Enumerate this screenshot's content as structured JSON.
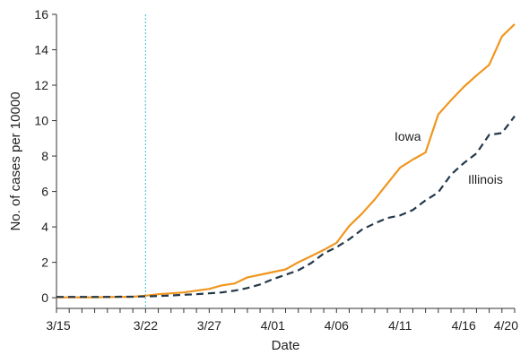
{
  "chart_data": {
    "type": "line",
    "xlabel": "Date",
    "ylabel": "No. of cases per 10000",
    "x_ticks": [
      "3/15",
      "3/22",
      "3/27",
      "4/01",
      "4/06",
      "4/11",
      "4/16",
      "4/20"
    ],
    "x_tick_days": [
      0,
      7,
      12,
      17,
      22,
      27,
      32,
      36
    ],
    "y_ticks": [
      0,
      2,
      4,
      6,
      8,
      10,
      12,
      14,
      16
    ],
    "ylim": [
      -0.6,
      16
    ],
    "xlim": [
      "3/15",
      "4/20"
    ],
    "grid": false,
    "reference_line": {
      "date": "3/22",
      "style": "dotted",
      "color": "#5bc8d8"
    },
    "x": [
      "3/15",
      "3/16",
      "3/17",
      "3/18",
      "3/19",
      "3/20",
      "3/21",
      "3/22",
      "3/23",
      "3/24",
      "3/25",
      "3/26",
      "3/27",
      "3/28",
      "3/29",
      "3/30",
      "3/31",
      "4/01",
      "4/02",
      "4/03",
      "4/04",
      "4/05",
      "4/06",
      "4/07",
      "4/08",
      "4/09",
      "4/10",
      "4/11",
      "4/12",
      "4/13",
      "4/14",
      "4/15",
      "4/16",
      "4/17",
      "4/18",
      "4/19",
      "4/20"
    ],
    "series": [
      {
        "name": "Iowa",
        "color": "#f0961e",
        "dash": "solid",
        "values": [
          0.02,
          0.02,
          0.02,
          0.03,
          0.04,
          0.05,
          0.06,
          0.12,
          0.2,
          0.25,
          0.3,
          0.4,
          0.5,
          0.7,
          0.8,
          1.15,
          1.3,
          1.45,
          1.6,
          2.0,
          2.35,
          2.7,
          3.1,
          4.05,
          4.75,
          5.55,
          6.45,
          7.35,
          7.8,
          8.2,
          10.35,
          11.15,
          11.9,
          12.55,
          13.15,
          14.75,
          15.45
        ]
      },
      {
        "name": "Illinois",
        "color": "#23384a",
        "dash": "dashed",
        "values": [
          0.05,
          0.05,
          0.05,
          0.05,
          0.05,
          0.06,
          0.06,
          0.08,
          0.1,
          0.13,
          0.17,
          0.2,
          0.25,
          0.3,
          0.4,
          0.55,
          0.75,
          1.05,
          1.3,
          1.55,
          1.95,
          2.5,
          2.85,
          3.3,
          3.85,
          4.2,
          4.5,
          4.65,
          4.95,
          5.5,
          5.95,
          6.95,
          7.6,
          8.15,
          9.2,
          9.3,
          10.25
        ]
      }
    ]
  }
}
